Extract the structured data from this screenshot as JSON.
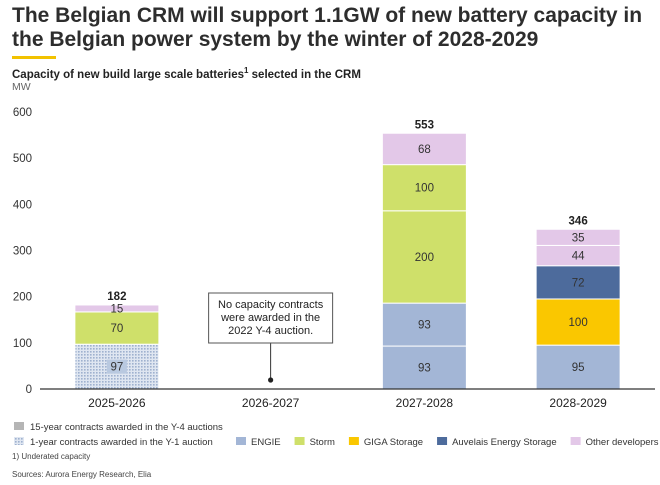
{
  "header": {
    "title": "The Belgian CRM will support 1.1GW of new battery capacity in the Belgian power system by the winter of 2028-2029",
    "subtitle_text": "Capacity of new build large scale batteries",
    "subtitle_sup": "1",
    "subtitle_tail": " selected in the CRM",
    "unit": "MW"
  },
  "footer": {
    "footnote": "1) Underated capacity",
    "sources": "Sources: Aurora Energy Research, Elia"
  },
  "colors": {
    "ENGIE": "#a3b6d6",
    "Storm": "#cfe06a",
    "GIGA Storage": "#fac700",
    "Auvelais Energy Storage": "#4d6b9c",
    "Other developers": "#e3c8e8",
    "y1_pattern": "#b9c9e0",
    "contract15": "#b5b5b5",
    "axis": "#333333",
    "grid": "#e6e6e6"
  },
  "chart_data": {
    "type": "bar",
    "stacked": true,
    "categories": [
      "2025-2026",
      "2026-2027",
      "2027-2028",
      "2028-2029"
    ],
    "ylim": [
      0,
      600
    ],
    "yticks": [
      0,
      100,
      200,
      300,
      400,
      500,
      600
    ],
    "ylabel": "MW",
    "series": [
      {
        "name": "ENGIE",
        "color_key": "ENGIE",
        "segments": [
          [
            {
              "value": 97,
              "pattern": "y1"
            }
          ],
          [],
          [
            {
              "value": 93
            },
            {
              "value": 93
            }
          ],
          [
            {
              "value": 95
            }
          ]
        ]
      },
      {
        "name": "Storm",
        "color_key": "Storm",
        "segments": [
          [
            {
              "value": 70
            }
          ],
          [],
          [
            {
              "value": 200
            },
            {
              "value": 100
            }
          ],
          []
        ]
      },
      {
        "name": "GIGA Storage",
        "color_key": "GIGA Storage",
        "segments": [
          [],
          [],
          [],
          [
            {
              "value": 100
            }
          ]
        ]
      },
      {
        "name": "Auvelais Energy Storage",
        "color_key": "Auvelais Energy Storage",
        "segments": [
          [],
          [],
          [],
          [
            {
              "value": 72
            }
          ]
        ]
      },
      {
        "name": "Other developers",
        "color_key": "Other developers",
        "segments": [
          [
            {
              "value": 15
            }
          ],
          [],
          [
            {
              "value": 68
            }
          ],
          [
            {
              "value": 44
            },
            {
              "value": 35
            }
          ]
        ]
      }
    ],
    "totals": [
      182,
      null,
      553,
      346
    ],
    "annotation": {
      "category": "2026-2027",
      "lines": [
        "No capacity contracts",
        "were awarded in the",
        "2022 Y-4 auction."
      ]
    },
    "legend_contracts": [
      {
        "label": "15-year contracts awarded in the Y-4 auctions",
        "style": "solid"
      },
      {
        "label": "1-year contracts awarded in the Y-1 auction",
        "style": "pattern"
      }
    ],
    "legend_position": "bottom",
    "grid": false
  }
}
